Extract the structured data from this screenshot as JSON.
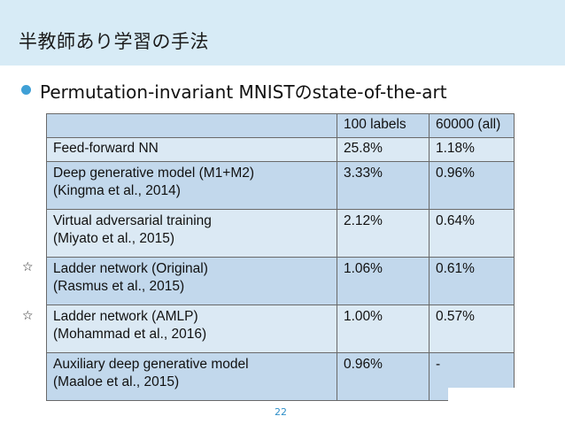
{
  "slide": {
    "title": "半教師あり学習の手法",
    "bullet": "Permutation-invariant MNISTのstate-of-the-art",
    "page_number": "22",
    "bullet_color": "#3fa0d6",
    "title_band_color": "#d7ebf6"
  },
  "table": {
    "headers": [
      "",
      "100 labels",
      "60000 (all)"
    ],
    "rows": [
      {
        "model_line1": "Feed-forward NN",
        "model_line2": "",
        "labels_100": "25.8%",
        "all_60000": "1.18%",
        "starred": false
      },
      {
        "model_line1": "Deep generative model (M1+M2)",
        "model_line2": "(Kingma et al., 2014)",
        "labels_100": "3.33%",
        "all_60000": "0.96%",
        "starred": false
      },
      {
        "model_line1": "Virtual adversarial training",
        "model_line2": "(Miyato et al., 2015)",
        "labels_100": "2.12%",
        "all_60000": "0.64%",
        "starred": false
      },
      {
        "model_line1": "Ladder network (Original)",
        "model_line2": "(Rasmus et al., 2015)",
        "labels_100": "1.06%",
        "all_60000": "0.61%",
        "starred": true
      },
      {
        "model_line1": "Ladder network (AMLP)",
        "model_line2": "(Mohammad et al., 2016)",
        "labels_100": "1.00%",
        "all_60000": "0.57%",
        "starred": true
      },
      {
        "model_line1": "Auxiliary deep generative model",
        "model_line2": "(Maaloe et al., 2015)",
        "labels_100": "0.96%",
        "all_60000": "-",
        "starred": false
      }
    ],
    "star_glyph": "☆"
  }
}
